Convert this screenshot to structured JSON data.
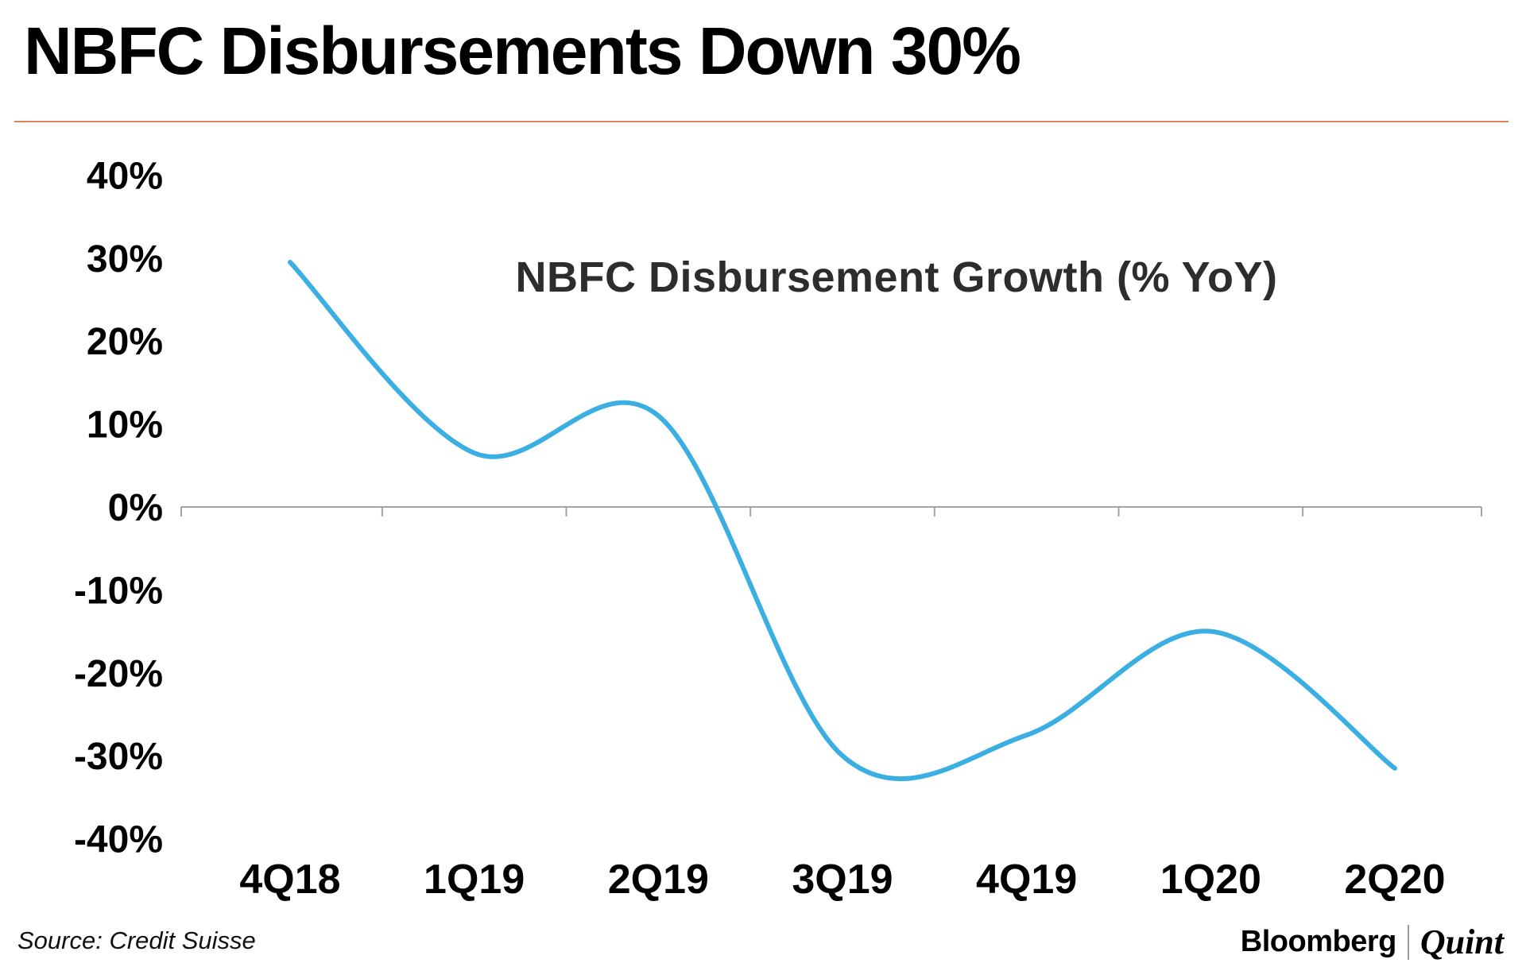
{
  "title": "NBFC Disbursements Down 30%",
  "accent_color": "#E0805A",
  "chart_data": {
    "type": "line",
    "title": "NBFC Disbursement Growth (% YoY)",
    "categories": [
      "4Q18",
      "1Q19",
      "2Q19",
      "3Q19",
      "4Q19",
      "1Q20",
      "2Q20"
    ],
    "series": [
      {
        "name": "NBFC Disbursement Growth (% YoY)",
        "values": [
          29.5,
          6.5,
          11,
          -30,
          -27.5,
          -15,
          -31.5
        ]
      }
    ],
    "ylim": [
      -40,
      40
    ],
    "y_ticks": [
      40,
      30,
      20,
      10,
      0,
      -10,
      -20,
      -30,
      -40
    ],
    "y_tick_labels": [
      "40%",
      "30%",
      "20%",
      "10%",
      "0%",
      "-10%",
      "-20%",
      "-30%",
      "-40%"
    ],
    "line_color": "#3BAEE2",
    "axis_color": "#a3a3a3",
    "smooth": true,
    "grid": false,
    "zero_axis": true,
    "legend_position": "none"
  },
  "footer": {
    "source": "Source: Credit Suisse",
    "brand_left": "Bloomberg",
    "brand_right": "Quint"
  }
}
